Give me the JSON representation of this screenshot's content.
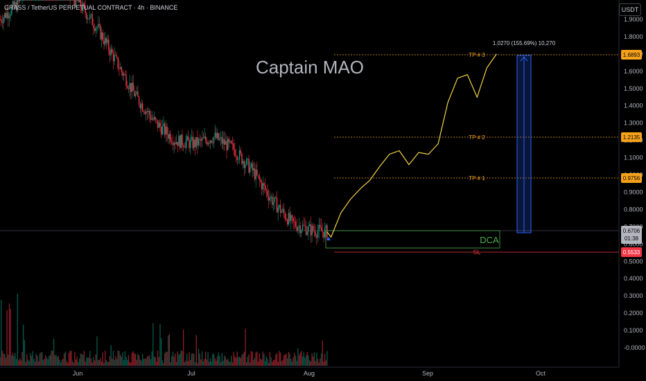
{
  "header": {
    "title": "GRASS / TetherUS PERPETUAL CONTRACT · 4h · BINANCE",
    "currency": "USDT"
  },
  "watermark": "Captain MAO",
  "measure_label": "1.0270 (155.69%) 10,270",
  "levels": {
    "tp3": {
      "label": "TP # 3",
      "price": 1.6893,
      "price_text": "1.6893"
    },
    "tp2": {
      "label": "TP # 2",
      "price": 1.2135,
      "price_text": "1.2135"
    },
    "tp1": {
      "label": "TP # 1",
      "price": 0.9756,
      "price_text": "0.9756"
    },
    "sl": {
      "label": "SL",
      "price": 0.5533,
      "price_text": "0.5533"
    },
    "dca_label": "DCA"
  },
  "current": {
    "price": 0.6706,
    "price_text": "0.6706",
    "countdown": "01:38"
  },
  "colors": {
    "tp": "#f7a21b",
    "sl": "#f23645",
    "dca": "#4caf50",
    "projection": "#f5d547",
    "measure": "#2962ff",
    "up": "#089981",
    "down": "#f23645"
  },
  "chart_data": {
    "type": "candlestick",
    "y_ticks": [
      "1.9000",
      "1.8000",
      "1.7000",
      "1.6000",
      "1.5000",
      "1.4000",
      "1.3000",
      "1.2000",
      "1.1000",
      "1.0000",
      "0.9000",
      "0.8000",
      "0.7000",
      "0.6000",
      "0.5000",
      "0.4000",
      "0.3000",
      "0.2000",
      "0.1000",
      "-0.0000"
    ],
    "y_tick_values": [
      1.9,
      1.8,
      1.7,
      1.6,
      1.5,
      1.4,
      1.3,
      1.2,
      1.1,
      1.0,
      0.9,
      0.8,
      0.7,
      0.6,
      0.5,
      0.4,
      0.3,
      0.2,
      0.1,
      0.0
    ],
    "x_ticks": [
      "Jun",
      "Jul",
      "Aug",
      "Sep",
      "Oct"
    ],
    "price_path": [
      [
        0,
        1.9
      ],
      [
        10,
        2.0
      ],
      [
        20,
        2.25
      ],
      [
        30,
        2.1
      ],
      [
        40,
        2.0
      ],
      [
        50,
        1.85
      ],
      [
        60,
        1.65
      ],
      [
        70,
        1.45
      ],
      [
        80,
        1.3
      ],
      [
        90,
        1.2
      ],
      [
        100,
        1.18
      ],
      [
        110,
        1.22
      ],
      [
        120,
        1.15
      ],
      [
        130,
        1.02
      ],
      [
        140,
        0.85
      ],
      [
        150,
        0.72
      ],
      [
        160,
        0.68
      ],
      [
        168,
        0.67
      ]
    ],
    "projection": [
      [
        168,
        0.67
      ],
      [
        170,
        0.64
      ],
      [
        175,
        0.78
      ],
      [
        180,
        0.86
      ],
      [
        185,
        0.92
      ],
      [
        190,
        0.97
      ],
      [
        195,
        1.05
      ],
      [
        200,
        1.12
      ],
      [
        205,
        1.14
      ],
      [
        210,
        1.06
      ],
      [
        215,
        1.13
      ],
      [
        220,
        1.12
      ],
      [
        225,
        1.18
      ],
      [
        230,
        1.42
      ],
      [
        235,
        1.56
      ],
      [
        240,
        1.58
      ],
      [
        245,
        1.45
      ],
      [
        250,
        1.62
      ],
      [
        255,
        1.7
      ]
    ],
    "volume_note": "volume bars at bottom"
  }
}
